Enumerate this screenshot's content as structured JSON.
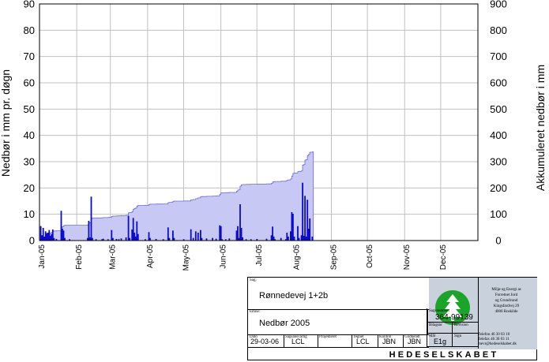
{
  "chart_data": {
    "type": "bar",
    "title": "",
    "ylabel": "Nedbør i mm pr. døgn",
    "y2label": "Akkumuleret nedbør i mm",
    "ylim": [
      0,
      90
    ],
    "y2lim": [
      0,
      900
    ],
    "yticks": [
      "0",
      "10",
      "20",
      "30",
      "40",
      "50",
      "60",
      "70",
      "80",
      "90"
    ],
    "y2ticks": [
      "0",
      "100",
      "200",
      "300",
      "400",
      "500",
      "600",
      "700",
      "800",
      "900"
    ],
    "xlim_days": [
      0,
      365
    ],
    "month_labels": [
      "Jan-05",
      "Feb-05",
      "Mar-05",
      "Apr-05",
      "May-05",
      "Jun-05",
      "Jul-05",
      "Aug-05",
      "Sep-05",
      "Oct-05",
      "Nov-05",
      "Dec-05"
    ],
    "grid": true,
    "colors": {
      "bars": "#0a0ad2",
      "area_fill": "#c8c8f5",
      "area_line": "#6a6ad8",
      "grid": "#c0c0c0"
    },
    "daily": [
      {
        "day": 1,
        "value": 5.5
      },
      {
        "day": 2,
        "value": 2.0
      },
      {
        "day": 3,
        "value": 4.8
      },
      {
        "day": 4,
        "value": 1.5
      },
      {
        "day": 5,
        "value": 3.5
      },
      {
        "day": 6,
        "value": 2.8
      },
      {
        "day": 7,
        "value": 3.0
      },
      {
        "day": 8,
        "value": 4.0
      },
      {
        "day": 9,
        "value": 1.8
      },
      {
        "day": 10,
        "value": 2.5
      },
      {
        "day": 11,
        "value": 4.2
      },
      {
        "day": 12,
        "value": 1.0
      },
      {
        "day": 14,
        "value": 0.6
      },
      {
        "day": 18,
        "value": 11.3
      },
      {
        "day": 19,
        "value": 4.5
      },
      {
        "day": 20,
        "value": 3.8
      },
      {
        "day": 21,
        "value": 1.0
      },
      {
        "day": 25,
        "value": 0.5
      },
      {
        "day": 40,
        "value": 1.0
      },
      {
        "day": 41,
        "value": 7.5
      },
      {
        "day": 42,
        "value": 1.2
      },
      {
        "day": 43,
        "value": 16.7
      },
      {
        "day": 44,
        "value": 1.0
      },
      {
        "day": 47,
        "value": 0.5
      },
      {
        "day": 52,
        "value": 0.5
      },
      {
        "day": 53,
        "value": 0.7
      },
      {
        "day": 57,
        "value": 0.5
      },
      {
        "day": 60,
        "value": 4.0
      },
      {
        "day": 61,
        "value": 1.0
      },
      {
        "day": 64,
        "value": 0.6
      },
      {
        "day": 66,
        "value": 0.5
      },
      {
        "day": 68,
        "value": 0.8
      },
      {
        "day": 72,
        "value": 1.2
      },
      {
        "day": 74,
        "value": 9.4
      },
      {
        "day": 75,
        "value": 1.0
      },
      {
        "day": 77,
        "value": 4.2
      },
      {
        "day": 78,
        "value": 8.6
      },
      {
        "day": 79,
        "value": 3.0
      },
      {
        "day": 80,
        "value": 1.5
      },
      {
        "day": 81,
        "value": 7.3
      },
      {
        "day": 82,
        "value": 2.5
      },
      {
        "day": 88,
        "value": 0.5
      },
      {
        "day": 91,
        "value": 3.2
      },
      {
        "day": 92,
        "value": 1.0
      },
      {
        "day": 97,
        "value": 0.6
      },
      {
        "day": 103,
        "value": 0.5
      },
      {
        "day": 107,
        "value": 5.0
      },
      {
        "day": 108,
        "value": 1.0
      },
      {
        "day": 111,
        "value": 3.8
      },
      {
        "day": 112,
        "value": 1.0
      },
      {
        "day": 120,
        "value": 0.5
      },
      {
        "day": 126,
        "value": 4.3
      },
      {
        "day": 128,
        "value": 1.0
      },
      {
        "day": 130,
        "value": 3.5
      },
      {
        "day": 132,
        "value": 3.0
      },
      {
        "day": 134,
        "value": 4.0
      },
      {
        "day": 135,
        "value": 1.0
      },
      {
        "day": 139,
        "value": 0.8
      },
      {
        "day": 144,
        "value": 1.0
      },
      {
        "day": 147,
        "value": 0.7
      },
      {
        "day": 150,
        "value": 5.8
      },
      {
        "day": 151,
        "value": 5.5
      },
      {
        "day": 152,
        "value": 0.5
      },
      {
        "day": 155,
        "value": 0.5
      },
      {
        "day": 158,
        "value": 0.8
      },
      {
        "day": 164,
        "value": 3.8
      },
      {
        "day": 165,
        "value": 5.5
      },
      {
        "day": 166,
        "value": 1.0
      },
      {
        "day": 167,
        "value": 13.8
      },
      {
        "day": 168,
        "value": 4.8
      },
      {
        "day": 169,
        "value": 1.2
      },
      {
        "day": 172,
        "value": 0.5
      },
      {
        "day": 176,
        "value": 0.5
      },
      {
        "day": 181,
        "value": 0.6
      },
      {
        "day": 189,
        "value": 0.7
      },
      {
        "day": 193,
        "value": 2.0
      },
      {
        "day": 194,
        "value": 5.3
      },
      {
        "day": 195,
        "value": 1.5
      },
      {
        "day": 196,
        "value": 0.5
      },
      {
        "day": 201,
        "value": 1.0
      },
      {
        "day": 205,
        "value": 0.5
      },
      {
        "day": 206,
        "value": 3.0
      },
      {
        "day": 207,
        "value": 1.5
      },
      {
        "day": 209,
        "value": 3.5
      },
      {
        "day": 210,
        "value": 10.8
      },
      {
        "day": 211,
        "value": 10.2
      },
      {
        "day": 212,
        "value": 1.5
      },
      {
        "day": 215,
        "value": 5.5
      },
      {
        "day": 216,
        "value": 1.0
      },
      {
        "day": 218,
        "value": 2.0
      },
      {
        "day": 219,
        "value": 22.0
      },
      {
        "day": 220,
        "value": 1.8
      },
      {
        "day": 221,
        "value": 17.0
      },
      {
        "day": 222,
        "value": 1.5
      },
      {
        "day": 223,
        "value": 15.5
      },
      {
        "day": 224,
        "value": 4.5
      },
      {
        "day": 225,
        "value": 8.4
      },
      {
        "day": 227,
        "value": 1.5
      }
    ]
  },
  "title_block": {
    "sag_label": "Sag:",
    "sag": "Rønnedevej 1+2b",
    "emne_label": "Emne:",
    "emne": "Nedbør 2005",
    "sagsnummer_label": "Sagsnummer",
    "sagsnummer": "364-99139",
    "bilagsnr_label": "Bilagsnr",
    "revision_label": "Revision",
    "dato_label": "Dato",
    "dato": "29-03-06",
    "sagsansvarlig_label": "Sagsansvarlig",
    "sagsansvarlig": "LCL",
    "projekteret_label": "Projekteret",
    "projekteret": "",
    "tegnet_label": "Tegnet",
    "tegnet": "LCL",
    "kontrol_label": "Kontrol",
    "kontrol": "JBN",
    "godkendt_label": "Godkendt",
    "godkendt": "JBN",
    "maal_label": "Mål",
    "maal": "E1g",
    "sign_label": "Sign",
    "company_lines": [
      "Miljø og Energi as",
      "Forretnet Jord",
      "og Grundvand",
      "Kingsfardvej 29",
      "4000 Roskilde"
    ],
    "contact_lines": [
      "Telefon 46 30 03 10",
      "Telefax 46 30 03 11",
      "mevr@hedeselskabet.dk"
    ],
    "brand": "HEDESELSKABET"
  }
}
